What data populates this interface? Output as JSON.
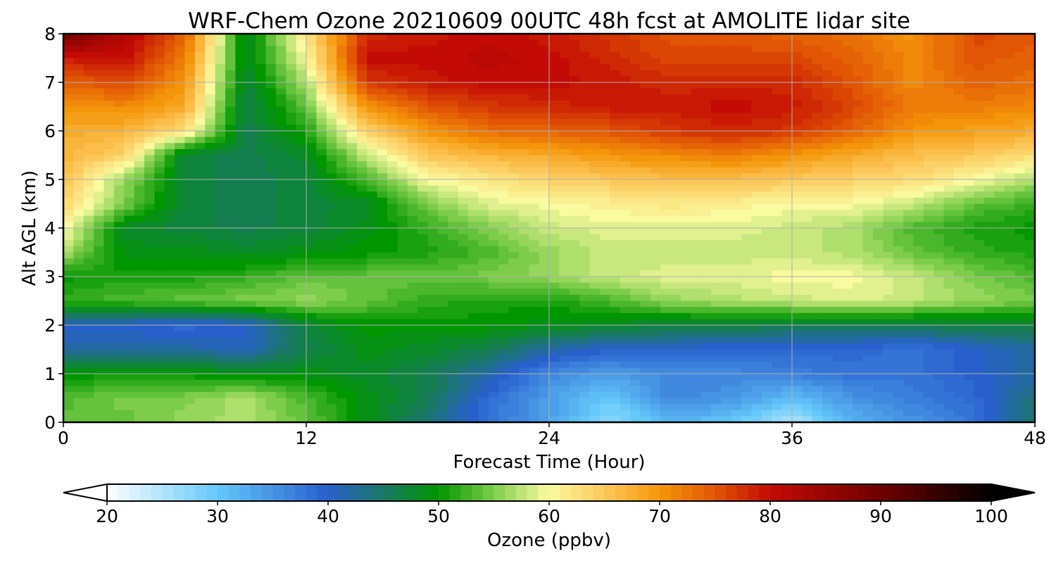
{
  "chart_data": {
    "type": "heatmap",
    "title": "WRF-Chem Ozone  20210609 00UTC 48h fcst at AMOLITE lidar site",
    "xlabel": "Forecast Time (Hour)",
    "ylabel": "Alt AGL (km)",
    "xlim": [
      0,
      48
    ],
    "ylim": [
      0,
      8
    ],
    "x_ticks": [
      "0",
      "12",
      "24",
      "36",
      "48"
    ],
    "y_ticks": [
      "0",
      "1",
      "2",
      "3",
      "4",
      "5",
      "6",
      "7",
      "8"
    ],
    "grid": true,
    "x_hours": [
      0,
      3,
      6,
      9,
      12,
      15,
      18,
      21,
      24,
      27,
      30,
      33,
      36,
      39,
      42,
      45,
      48
    ],
    "z_km": [
      0,
      0.5,
      1,
      1.5,
      2,
      2.5,
      3,
      3.5,
      4,
      4.5,
      5,
      5.5,
      6,
      6.5,
      7,
      7.5,
      8
    ],
    "ozone_ppbv_rows_by_altitude": [
      [
        54,
        54,
        56,
        57,
        54,
        49,
        44,
        38,
        34,
        27,
        32,
        30,
        25,
        32,
        35,
        38,
        45
      ],
      [
        53,
        55,
        55,
        57,
        53,
        49,
        46,
        39,
        34,
        30,
        36,
        35,
        31,
        35,
        37,
        39,
        44
      ],
      [
        50,
        50,
        50,
        49,
        49,
        48,
        46,
        42,
        36,
        34,
        36,
        36,
        37,
        38,
        38,
        40,
        42
      ],
      [
        42,
        42,
        42,
        41,
        46,
        49,
        48,
        46,
        42,
        40,
        40,
        39,
        39,
        39,
        38,
        40,
        42
      ],
      [
        40,
        40,
        39,
        40,
        47,
        50,
        50,
        50,
        49,
        48,
        47,
        47,
        46,
        46,
        46,
        47,
        47
      ],
      [
        52,
        53,
        54,
        55,
        56,
        54,
        52,
        51,
        51,
        53,
        56,
        57,
        58,
        59,
        58,
        56,
        55
      ],
      [
        50,
        51,
        51,
        52,
        54,
        54,
        54,
        55,
        56,
        58,
        59,
        59,
        60,
        60,
        58,
        55,
        53
      ],
      [
        57,
        49,
        49,
        48,
        49,
        50,
        51,
        53,
        56,
        58,
        58,
        58,
        58,
        57,
        54,
        52,
        51
      ],
      [
        61,
        48,
        47,
        46,
        47,
        49,
        52,
        55,
        58,
        59,
        59,
        59,
        58,
        57,
        53,
        51,
        50
      ],
      [
        64,
        55,
        47,
        46,
        47,
        48,
        55,
        59,
        60,
        61,
        62,
        61,
        60,
        60,
        58,
        54,
        52
      ],
      [
        66,
        56,
        47,
        46,
        47,
        53,
        60,
        62,
        64,
        65,
        66,
        66,
        65,
        64,
        63,
        60,
        57
      ],
      [
        67,
        64,
        47,
        46,
        48,
        58,
        65,
        67,
        68,
        70,
        71,
        72,
        70,
        68,
        66,
        65,
        63
      ],
      [
        68,
        67,
        63,
        46,
        51,
        64,
        70,
        73,
        74,
        75,
        77,
        78,
        77,
        74,
        70,
        69,
        68
      ],
      [
        70,
        71,
        68,
        46,
        54,
        70,
        75,
        77,
        78,
        79,
        79,
        80,
        79,
        76,
        72,
        72,
        71
      ],
      [
        74,
        76,
        70,
        47,
        57,
        77,
        79,
        80,
        80,
        79,
        78,
        78,
        78,
        75,
        71,
        74,
        73
      ],
      [
        79,
        80,
        72,
        48,
        60,
        80,
        80,
        81,
        80,
        78,
        76,
        76,
        76,
        74,
        71,
        75,
        74
      ],
      [
        90,
        82,
        74,
        48,
        62,
        78,
        79,
        80,
        79,
        77,
        75,
        75,
        74,
        73,
        70,
        76,
        75
      ]
    ],
    "colorbar": {
      "label": "Ozone  (ppbv)",
      "min": 20,
      "max": 100,
      "ticks": [
        "20",
        "30",
        "40",
        "50",
        "60",
        "70",
        "80",
        "90",
        "100"
      ],
      "extend": "both"
    }
  }
}
